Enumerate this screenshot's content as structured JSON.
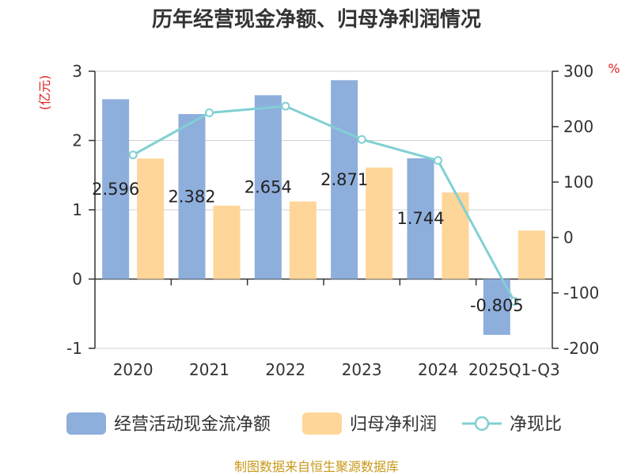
{
  "chart_data": {
    "type": "bar",
    "title": "历年经营现金净额、归母净利润情况",
    "categories": [
      "2020",
      "2021",
      "2022",
      "2023",
      "2024",
      "2025Q1-Q3"
    ],
    "series": [
      {
        "name": "经营活动现金流净额",
        "kind": "bar",
        "axis": "left",
        "color": "#8eaedc",
        "values": [
          2.596,
          2.382,
          2.654,
          2.871,
          1.744,
          -0.805
        ],
        "labels": [
          "2.596",
          "2.382",
          "2.654",
          "2.871",
          "1.744",
          "-0.805"
        ]
      },
      {
        "name": "归母净利润",
        "kind": "bar",
        "axis": "left",
        "color": "#ffd699",
        "values": [
          1.74,
          1.06,
          1.12,
          1.61,
          1.25,
          0.7
        ]
      },
      {
        "name": "净现比",
        "kind": "line",
        "axis": "right",
        "color": "#80d0d3",
        "values": [
          149,
          225,
          237,
          177,
          139,
          -115
        ]
      }
    ],
    "left_axis": {
      "unit": "(亿元)",
      "min": -1,
      "max": 3,
      "ticks": [
        -1,
        0,
        1,
        2,
        3
      ],
      "tick_labels": [
        "-1",
        "0",
        "1",
        "2",
        "3"
      ]
    },
    "right_axis": {
      "unit": "%",
      "min": -200,
      "max": 300,
      "ticks": [
        -200,
        -100,
        0,
        100,
        200,
        300
      ],
      "tick_labels": [
        "-200",
        "-100",
        "0",
        "100",
        "200",
        "300"
      ]
    },
    "grid": true,
    "legend_position": "bottom"
  },
  "source": "制图数据来自恒生聚源数据库"
}
